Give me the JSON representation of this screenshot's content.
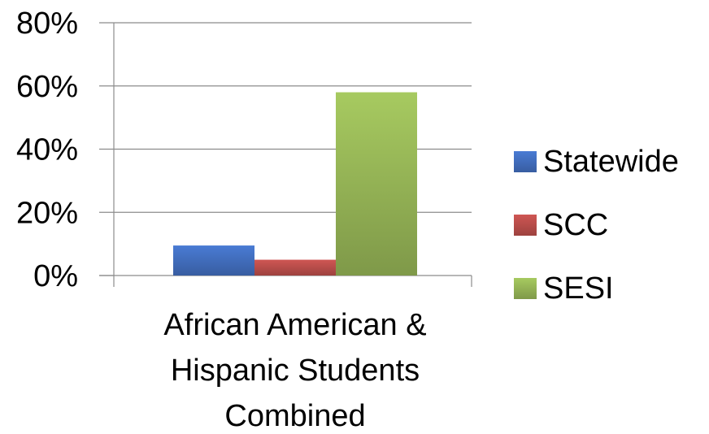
{
  "chart_data": {
    "type": "bar",
    "categories": [
      "African American & Hispanic Students Combined"
    ],
    "category_label_lines": [
      "African American &",
      "Hispanic Students",
      "Combined"
    ],
    "series": [
      {
        "name": "Statewide",
        "values": [
          0.095
        ],
        "color": "#4472C4"
      },
      {
        "name": "SCC",
        "values": [
          0.05
        ],
        "color": "#C0504D"
      },
      {
        "name": "SESI",
        "values": [
          0.58
        ],
        "color": "#9BBB59"
      }
    ],
    "y_ticks": [
      0,
      0.2,
      0.4,
      0.6,
      0.8
    ],
    "y_tick_labels": [
      "0%",
      "20%",
      "40%",
      "60%",
      "80%"
    ],
    "ylim": [
      0,
      0.8
    ],
    "grid": true,
    "legend_position": "right",
    "title": "",
    "xlabel": "",
    "ylabel": ""
  }
}
